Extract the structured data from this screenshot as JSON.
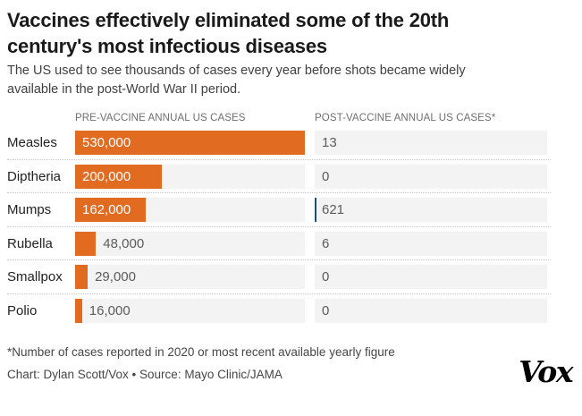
{
  "title": "Vaccines effectively eliminated some of the 20th century's most infectious diseases",
  "subtitle": "The US used to see thousands of cases every year before shots became widely available in the post-World War II period.",
  "columns": {
    "pre": "PRE-VACCINE ANNUAL US CASES",
    "post": "POST-VACCINE ANNUAL US CASES*"
  },
  "footnote": "*Number of cases reported in 2020 or most recent available yearly figure",
  "credit": "Chart: Dylan Scott/Vox • Source: Mayo Clinic/JAMA",
  "logo": "Vox",
  "colors": {
    "bar_orange": "#e06b21",
    "bar_navy": "#1b4f7e",
    "track_gray": "#f3f3f3"
  },
  "chart_data": {
    "type": "bar",
    "orientation": "horizontal",
    "categories": [
      "Measles",
      "Diptheria",
      "Mumps",
      "Rubella",
      "Smallpox",
      "Polio"
    ],
    "series": [
      {
        "name": "PRE-VACCINE ANNUAL US CASES",
        "values": [
          530000,
          200000,
          162000,
          48000,
          29000,
          16000
        ],
        "labels": [
          "530,000",
          "200,000",
          "162,000",
          "48,000",
          "29,000",
          "16,000"
        ]
      },
      {
        "name": "POST-VACCINE ANNUAL US CASES*",
        "values": [
          13,
          0,
          621,
          6,
          0,
          0
        ],
        "labels": [
          "13",
          "0",
          "621",
          "6",
          "0",
          "0"
        ]
      }
    ],
    "xmax": 530000,
    "grid": "dotted-row-separators",
    "legend_position": "column-headers"
  }
}
